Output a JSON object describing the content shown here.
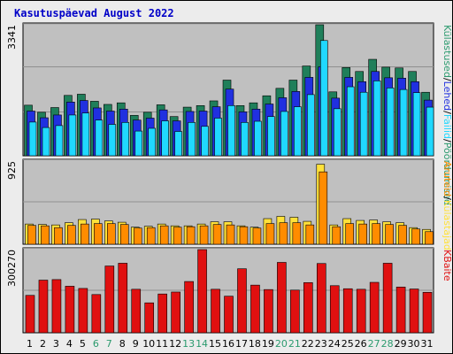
{
  "title": "Kasutuspäevad August 2022",
  "colors": {
    "panel_bg": "#c0c0c0",
    "grid": "#8f8f8f",
    "visits": "#1f7f5a",
    "pages": "#2030e0",
    "files": "#20d8ff",
    "hits": "#ff8c00",
    "hits_top": "#ffe13a",
    "kbytes": "#e01010",
    "weekend": "#2b9a6e",
    "weekday": "#000000"
  },
  "chart_data": [
    {
      "type": "bar",
      "name": "traffic",
      "ymax_label": "3341",
      "ymax": 3341,
      "legend": [
        "Külastused",
        "Lehed",
        "Failid",
        "Pöördumised"
      ],
      "legend_display": [
        "Külastused",
        "/",
        "Lehed",
        "/",
        "Failid",
        "/",
        "Pöördumised"
      ],
      "legend_colors": [
        "#2b9a6e",
        "#2030e0",
        "#20d8ff",
        "#2b9a6e"
      ],
      "visits": [
        1290,
        1110,
        1230,
        1540,
        1570,
        1390,
        1310,
        1350,
        1030,
        1110,
        1300,
        1000,
        1240,
        1280,
        1400,
        1930,
        1280,
        1350,
        1530,
        1720,
        1930,
        2290,
        3341,
        1630,
        2250,
        2150,
        2460,
        2260,
        2240,
        2150,
        1620
      ],
      "pages": [
        1140,
        970,
        1040,
        1370,
        1410,
        1220,
        1140,
        1190,
        910,
        960,
        1170,
        890,
        1130,
        1140,
        1250,
        1700,
        1120,
        1190,
        1320,
        1480,
        1640,
        2000,
        2270,
        1470,
        2000,
        1890,
        2150,
        1990,
        1980,
        1890,
        1420
      ],
      "files": [
        860,
        720,
        770,
        1040,
        1090,
        910,
        800,
        850,
        630,
        700,
        890,
        620,
        850,
        750,
        960,
        1280,
        850,
        880,
        1000,
        1130,
        1250,
        1560,
        2940,
        1200,
        1760,
        1620,
        1910,
        1730,
        1690,
        1610,
        1240
      ]
    },
    {
      "type": "bar",
      "name": "hits",
      "ymax_label": "925",
      "ymax": 925,
      "legend": [
        "Aruteid",
        "Külastajad"
      ],
      "legend_display": [
        "Aruteid",
        "/",
        "Külastajad"
      ],
      "legend_colors": [
        "#ff8c00",
        "#ffe13a"
      ],
      "hits_top": [
        225,
        220,
        215,
        240,
        275,
        280,
        260,
        245,
        190,
        200,
        225,
        205,
        205,
        225,
        250,
        250,
        205,
        190,
        285,
        310,
        300,
        255,
        890,
        215,
        285,
        265,
        270,
        250,
        240,
        185,
        165
      ],
      "hits": [
        210,
        205,
        185,
        210,
        225,
        230,
        230,
        220,
        180,
        185,
        205,
        190,
        195,
        205,
        220,
        215,
        195,
        180,
        230,
        240,
        240,
        215,
        805,
        195,
        230,
        225,
        230,
        220,
        210,
        170,
        140
      ]
    },
    {
      "type": "bar",
      "name": "kbytes",
      "ymax_label": "300270",
      "ymax": 300270,
      "legend": [
        "KBaite"
      ],
      "legend_display": [
        "KBaite"
      ],
      "legend_colors": [
        "#e01010"
      ],
      "values": [
        135000,
        190000,
        192000,
        168000,
        160000,
        138000,
        241000,
        251000,
        157000,
        108000,
        140000,
        147000,
        185000,
        300270,
        157000,
        132000,
        231000,
        172000,
        156000,
        254000,
        154000,
        181000,
        250000,
        170000,
        159000,
        157000,
        182000,
        251000,
        165000,
        158000,
        146000
      ]
    }
  ],
  "days": [
    "1",
    "2",
    "3",
    "4",
    "5",
    "6",
    "7",
    "8",
    "9",
    "10",
    "11",
    "12",
    "13",
    "14",
    "15",
    "16",
    "17",
    "18",
    "19",
    "20",
    "21",
    "22",
    "23",
    "24",
    "25",
    "26",
    "27",
    "28",
    "29",
    "30",
    "31"
  ],
  "weekends": [
    6,
    7,
    13,
    14,
    20,
    21,
    27,
    28
  ]
}
